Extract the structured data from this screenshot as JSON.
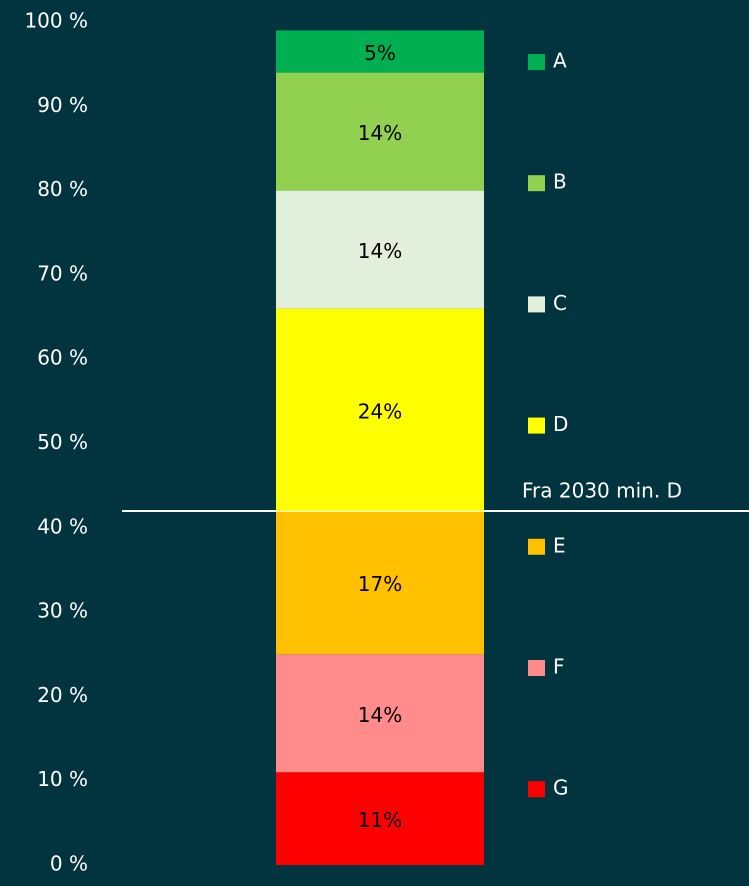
{
  "chart_data": {
    "type": "stacked_bar",
    "categories": [
      null
    ],
    "series": [
      {
        "name": "A",
        "color": "#00b050",
        "values": [
          5
        ],
        "value_labels": [
          "5%"
        ]
      },
      {
        "name": "B",
        "color": "#92d050",
        "values": [
          14
        ],
        "value_labels": [
          "14%"
        ]
      },
      {
        "name": "C",
        "color": "#e2efda",
        "values": [
          14
        ],
        "value_labels": [
          "14%"
        ]
      },
      {
        "name": "D",
        "color": "#ffff00",
        "values": [
          24
        ],
        "value_labels": [
          "24%"
        ]
      },
      {
        "name": "E",
        "color": "#ffc000",
        "values": [
          17
        ],
        "value_labels": [
          "17%"
        ]
      },
      {
        "name": "F",
        "color": "#ff8b8b",
        "values": [
          14
        ],
        "value_labels": [
          "14%"
        ]
      },
      {
        "name": "G",
        "color": "#ff0000",
        "values": [
          11
        ],
        "value_labels": [
          "11%"
        ]
      }
    ],
    "ylim": [
      0,
      100
    ],
    "yticks": [
      {
        "value": 0,
        "label": "0 %"
      },
      {
        "value": 10,
        "label": "10 %"
      },
      {
        "value": 20,
        "label": "20 %"
      },
      {
        "value": 30,
        "label": "30 %"
      },
      {
        "value": 40,
        "label": "40 %"
      },
      {
        "value": 50,
        "label": "50 %"
      },
      {
        "value": 60,
        "label": "60 %"
      },
      {
        "value": 70,
        "label": "70 %"
      },
      {
        "value": 80,
        "label": "80 %"
      },
      {
        "value": 90,
        "label": "90 %"
      },
      {
        "value": 100,
        "label": "100 %"
      }
    ],
    "annotation": "Fra 2030 min. D",
    "legend": "right"
  }
}
